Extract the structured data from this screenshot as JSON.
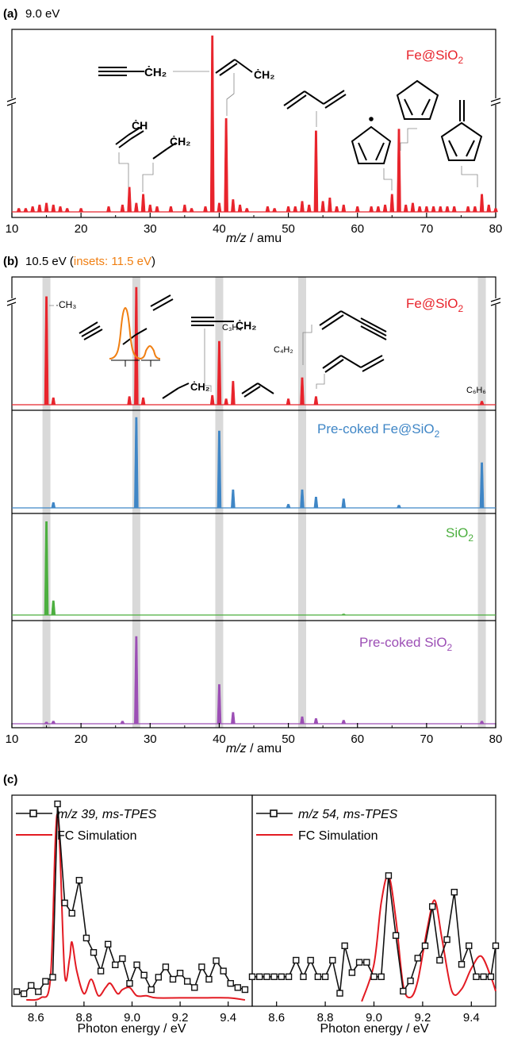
{
  "panel_a": {
    "tag": "(a)",
    "energy": "9.0 eV",
    "sample": "Fe@SiO",
    "xlabel_italic": "m/z",
    "xlabel_rest": " / amu",
    "ticks": [
      "10",
      "20",
      "30",
      "40",
      "50",
      "60",
      "70",
      "80"
    ],
    "mol_labels": {
      "ch2": "ĊH₂",
      "ch": "ĊH",
      "ch2b": "ĊH₂",
      "ch2c": "ĊH₂"
    }
  },
  "panel_b": {
    "tag": "(b)",
    "energy_open": "10.5 eV (",
    "insets_label": "insets: 11.5 eV",
    "energy_close": ")",
    "samples": [
      "Fe@SiO",
      "Pre-coked Fe@SiO",
      "SiO",
      "Pre-coked SiO"
    ],
    "annotations": {
      "ch3": "·CH₃",
      "c3h4": "C₃H₄",
      "c4h2": "C₄H₂",
      "c6h6": "C₆H₆",
      "ch2a": "ĊH₂",
      "ch2b": "ĊH₂"
    },
    "xlabel_italic": "m/z",
    "xlabel_rest": " / amu",
    "ticks": [
      "10",
      "20",
      "30",
      "40",
      "50",
      "60",
      "70",
      "80"
    ]
  },
  "panel_c": {
    "tag": "(c)",
    "left": {
      "legend_exp": "m/z 39, ms-TPES",
      "legend_sim": "FC Simulation",
      "ticks": [
        "8.6",
        "8.8",
        "9.0",
        "9.2",
        "9.4"
      ]
    },
    "right": {
      "legend_exp": "m/z 54, ms-TPES",
      "legend_sim": "FC Simulation",
      "ticks": [
        "8.6",
        "8.8",
        "9.0",
        "9.2",
        "9.4"
      ]
    },
    "xlabel": "Photon energy / eV"
  },
  "colors": {
    "fe": "#e8242c",
    "precoked_fe": "#3f86c6",
    "sio2": "#4caf3f",
    "precoked_sio2": "#9c4fb5",
    "inset": "#f07f12",
    "sim": "#e31b23",
    "exp": "#111111",
    "band": "#d9d9d9"
  },
  "chart_data": [
    {
      "type": "line",
      "title": "9.0 eV",
      "xlabel": "m/z / amu",
      "xlim": [
        10,
        80
      ],
      "series": [
        {
          "name": "Fe@SiO2",
          "x": [
            11,
            12,
            13,
            14,
            15,
            16,
            17,
            18,
            20,
            24,
            26,
            27,
            28,
            29,
            30,
            31,
            33,
            35,
            36,
            38,
            39,
            40,
            41,
            42,
            43,
            44,
            47,
            48,
            50,
            51,
            52,
            53,
            54,
            55,
            56,
            57,
            58,
            60,
            62,
            63,
            64,
            65,
            66,
            67,
            68,
            69,
            70,
            71,
            72,
            73,
            74,
            76,
            77,
            78,
            79,
            80
          ],
          "y": [
            0.02,
            0.02,
            0.03,
            0.04,
            0.05,
            0.04,
            0.03,
            0.02,
            0.02,
            0.03,
            0.04,
            0.14,
            0.05,
            0.1,
            0.04,
            0.03,
            0.03,
            0.04,
            0.02,
            0.03,
            1.0,
            0.05,
            0.53,
            0.07,
            0.04,
            0.02,
            0.03,
            0.02,
            0.03,
            0.03,
            0.06,
            0.04,
            0.46,
            0.06,
            0.08,
            0.03,
            0.04,
            0.03,
            0.03,
            0.03,
            0.04,
            0.1,
            0.47,
            0.04,
            0.05,
            0.03,
            0.03,
            0.03,
            0.03,
            0.03,
            0.03,
            0.03,
            0.03,
            0.1,
            0.04,
            0.02
          ]
        }
      ]
    },
    {
      "type": "line",
      "title": "10.5 eV",
      "xlabel": "m/z / amu",
      "xlim": [
        10,
        80
      ],
      "series": [
        {
          "name": "Fe@SiO2",
          "x": [
            15,
            16,
            27,
            28,
            29,
            39,
            40,
            41,
            42,
            50,
            52,
            54,
            78
          ],
          "y": [
            0.92,
            0.06,
            0.07,
            1.0,
            0.06,
            0.08,
            0.54,
            0.05,
            0.2,
            0.05,
            0.23,
            0.07,
            0.03
          ]
        },
        {
          "name": "Pre-coked Fe@SiO2",
          "x": [
            16,
            28,
            40,
            42,
            50,
            52,
            54,
            58,
            66,
            78
          ],
          "y": [
            0.06,
            1.0,
            0.85,
            0.2,
            0.04,
            0.2,
            0.12,
            0.1,
            0.03,
            0.5
          ]
        },
        {
          "name": "SiO2",
          "x": [
            15,
            16,
            58
          ],
          "y": [
            0.92,
            0.14,
            0.01
          ]
        },
        {
          "name": "Pre-coked SiO2",
          "x": [
            15,
            16,
            26,
            28,
            40,
            42,
            52,
            54,
            58,
            78
          ],
          "y": [
            0.02,
            0.03,
            0.03,
            1.0,
            0.45,
            0.13,
            0.08,
            0.06,
            0.04,
            0.03
          ]
        }
      ]
    },
    {
      "type": "line",
      "xlabel": "Photon energy / eV",
      "xlim": [
        8.5,
        9.5
      ],
      "series": [
        {
          "name": "m/z 39, ms-TPES",
          "x": [
            8.52,
            8.55,
            8.58,
            8.61,
            8.64,
            8.67,
            8.69,
            8.72,
            8.75,
            8.78,
            8.81,
            8.84,
            8.87,
            8.9,
            8.93,
            8.96,
            8.99,
            9.02,
            9.05,
            9.08,
            9.11,
            9.14,
            9.17,
            9.2,
            9.23,
            9.26,
            9.29,
            9.32,
            9.35,
            9.38,
            9.41,
            9.44,
            9.47
          ],
          "y": [
            0.04,
            0.03,
            0.07,
            0.04,
            0.09,
            0.11,
            0.95,
            0.47,
            0.42,
            0.58,
            0.3,
            0.23,
            0.14,
            0.27,
            0.17,
            0.2,
            0.08,
            0.17,
            0.12,
            0.05,
            0.11,
            0.16,
            0.1,
            0.13,
            0.09,
            0.06,
            0.16,
            0.1,
            0.19,
            0.14,
            0.08,
            0.06,
            0.05
          ]
        },
        {
          "name": "FC Simulation",
          "x": [
            8.56,
            8.62,
            8.66,
            8.68,
            8.69,
            8.7,
            8.72,
            8.74,
            8.75,
            8.77,
            8.8,
            8.83,
            8.86,
            8.89,
            8.91,
            8.94,
            8.96,
            8.99,
            9.02,
            9.06,
            9.1,
            9.2,
            9.3,
            9.4,
            9.47
          ],
          "y": [
            0.0,
            0.01,
            0.1,
            0.75,
            0.9,
            0.72,
            0.12,
            0.2,
            0.28,
            0.14,
            0.03,
            0.1,
            0.02,
            0.06,
            0.08,
            0.03,
            0.05,
            0.06,
            0.02,
            0.02,
            0.01,
            0.01,
            0.01,
            0.01,
            0.0
          ]
        }
      ]
    },
    {
      "type": "line",
      "xlabel": "Photon energy / eV",
      "xlim": [
        8.5,
        9.5
      ],
      "series": [
        {
          "name": "m/z 54, ms-TPES",
          "x": [
            8.5,
            8.53,
            8.56,
            8.59,
            8.62,
            8.65,
            8.68,
            8.71,
            8.74,
            8.77,
            8.8,
            8.83,
            8.86,
            8.88,
            8.91,
            8.94,
            8.97,
            9.0,
            9.03,
            9.06,
            9.09,
            9.12,
            9.15,
            9.18,
            9.21,
            9.24,
            9.27,
            9.3,
            9.33,
            9.36,
            9.39,
            9.42,
            9.45,
            9.48,
            9.5
          ],
          "y": [
            0.12,
            0.12,
            0.12,
            0.12,
            0.12,
            0.12,
            0.2,
            0.12,
            0.2,
            0.12,
            0.12,
            0.2,
            0.04,
            0.27,
            0.14,
            0.19,
            0.19,
            0.12,
            0.12,
            0.61,
            0.32,
            0.05,
            0.1,
            0.21,
            0.27,
            0.46,
            0.2,
            0.3,
            0.53,
            0.18,
            0.27,
            0.12,
            0.12,
            0.12,
            0.27
          ]
        },
        {
          "name": "FC Simulation",
          "x": [
            8.95,
            9.0,
            9.03,
            9.06,
            9.09,
            9.12,
            9.15,
            9.18,
            9.22,
            9.25,
            9.28,
            9.32,
            9.36,
            9.4,
            9.44,
            9.48,
            9.5
          ],
          "y": [
            0.0,
            0.18,
            0.48,
            0.61,
            0.4,
            0.08,
            0.02,
            0.1,
            0.36,
            0.49,
            0.3,
            0.05,
            0.06,
            0.16,
            0.22,
            0.12,
            0.05
          ]
        }
      ]
    }
  ]
}
